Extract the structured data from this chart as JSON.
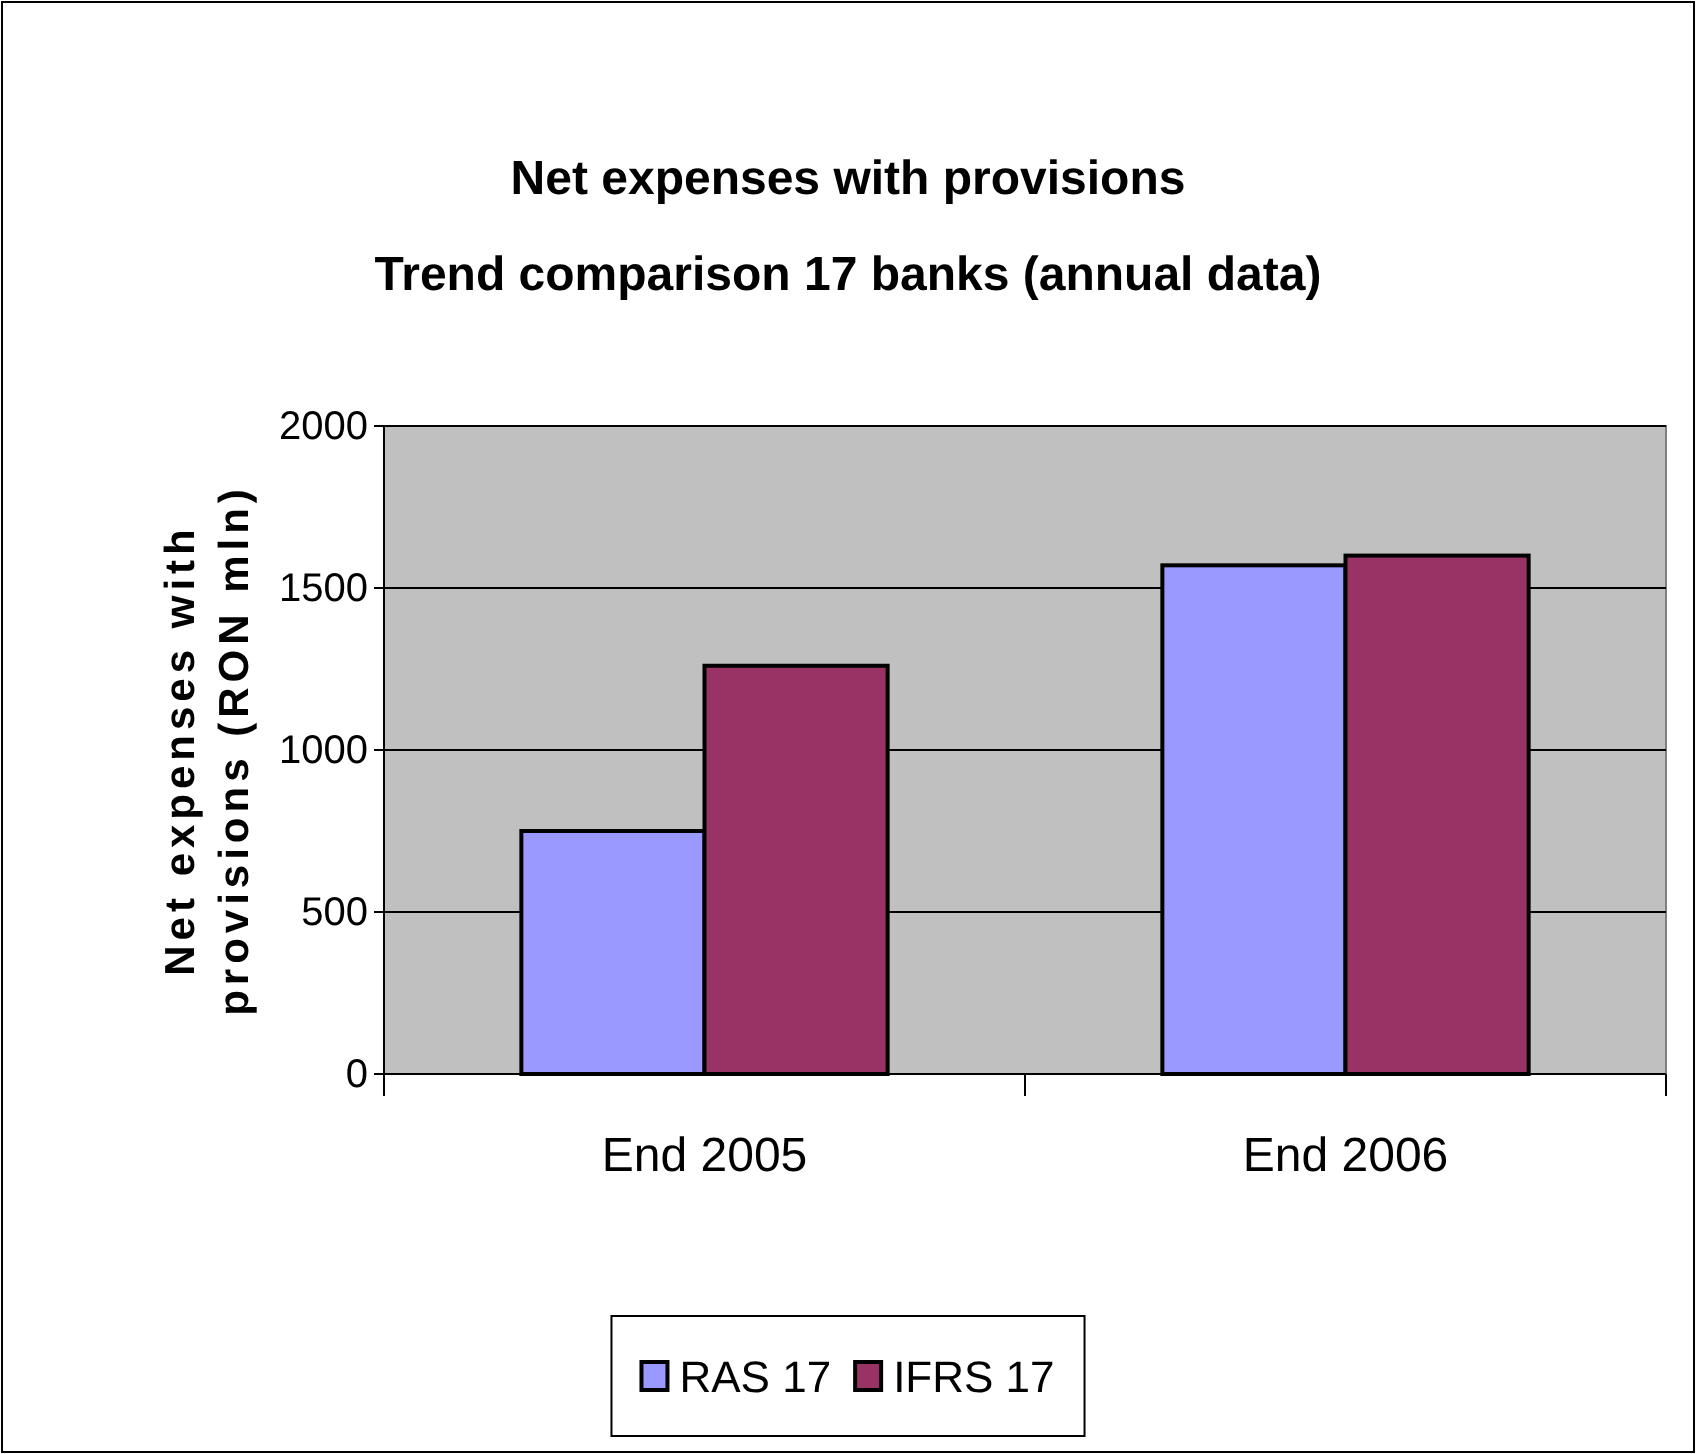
{
  "chart_data": {
    "type": "bar",
    "title": "Net expenses with provisions\nTrend comparison 17 banks (annual data)",
    "ylabel": "Net expenses with\nprovisions (RON mln)",
    "categories": [
      "End 2005",
      "End 2006"
    ],
    "series": [
      {
        "name": "RAS 17",
        "color": "#9999ff",
        "values": [
          750,
          1570
        ]
      },
      {
        "name": "IFRS 17",
        "color": "#993366",
        "values": [
          1260,
          1600
        ]
      }
    ],
    "ylim": [
      0,
      2000
    ],
    "yticks": [
      0,
      500,
      1000,
      1500,
      2000
    ],
    "grid": "y",
    "legend": "bottom"
  }
}
